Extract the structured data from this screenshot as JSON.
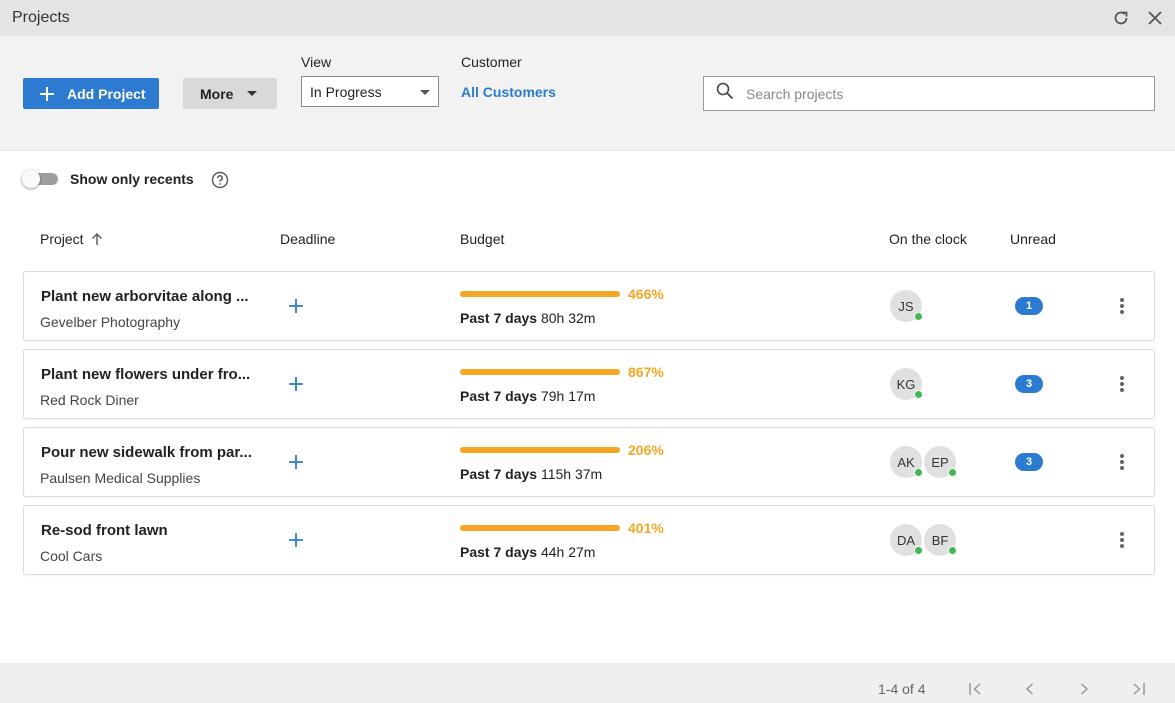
{
  "window": {
    "title": "Projects",
    "refresh_icon": "refresh-icon",
    "close_icon": "close-icon"
  },
  "toolbar": {
    "add_project_label": "Add Project",
    "more_label": "More",
    "view_label": "View",
    "view_value": "In Progress",
    "customer_label": "Customer",
    "customer_value": "All Customers",
    "search_placeholder": "Search projects"
  },
  "filters": {
    "recents_label": "Show only recents",
    "recents_on": false
  },
  "columns": {
    "project": "Project",
    "deadline": "Deadline",
    "budget": "Budget",
    "on_clock": "On the clock",
    "unread": "Unread"
  },
  "rows": [
    {
      "name": "Plant new arborvitae along ...",
      "customer": "Gevelber Photography",
      "budget_pct": "466%",
      "past_label": "Past 7 days",
      "past_value": "80h 32m",
      "avatars": [
        "JS"
      ],
      "unread": "1"
    },
    {
      "name": "Plant new flowers under fro...",
      "customer": "Red Rock Diner",
      "budget_pct": "867%",
      "past_label": "Past 7 days",
      "past_value": "79h 17m",
      "avatars": [
        "KG"
      ],
      "unread": "3"
    },
    {
      "name": "Pour new sidewalk from par...",
      "customer": "Paulsen Medical Supplies",
      "budget_pct": "206%",
      "past_label": "Past 7 days",
      "past_value": "115h 37m",
      "avatars": [
        "AK",
        "EP"
      ],
      "unread": "3"
    },
    {
      "name": "Re-sod front lawn",
      "customer": "Cool Cars",
      "budget_pct": "401%",
      "past_label": "Past 7 days",
      "past_value": "44h 27m",
      "avatars": [
        "DA",
        "BF"
      ],
      "unread": ""
    }
  ],
  "footer": {
    "range": "1-4 of 4"
  },
  "colors": {
    "accent": "#2d7bd0",
    "budget_over": "#f5a623",
    "online": "#3fb950"
  }
}
